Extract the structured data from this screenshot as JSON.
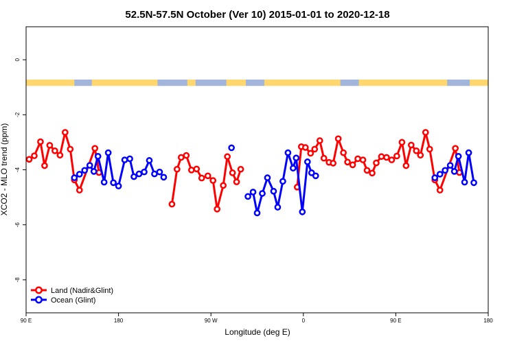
{
  "chart_data": {
    "type": "line",
    "title": "52.5N-57.5N October (Ver 10)   2015-01-01 to 2020-12-18",
    "xlabel": "Longitude (deg E)",
    "ylabel": "XCO2 - MLO trend (ppm)",
    "x_ticks": [
      {
        "value": 90,
        "label": "90 E"
      },
      {
        "value": 180,
        "label": "180"
      },
      {
        "value": 270,
        "label": "90 W"
      },
      {
        "value": 360,
        "label": "0"
      },
      {
        "value": 450,
        "label": "90 E"
      },
      {
        "value": 540,
        "label": "180"
      }
    ],
    "y_ticks": [
      {
        "value": 0,
        "label": "0"
      },
      {
        "value": -2,
        "label": "-2"
      },
      {
        "value": -4,
        "label": "-4"
      },
      {
        "value": -6,
        "label": "-6"
      },
      {
        "value": -8,
        "label": "-8"
      }
    ],
    "xlim": [
      90,
      540
    ],
    "ylim": [
      -9.2,
      1.2
    ],
    "land_mask": {
      "y_range": [
        -0.95,
        -0.72
      ],
      "ocean_spans": [
        [
          137,
          154
        ],
        [
          218,
          247
        ],
        [
          255,
          285
        ],
        [
          304,
          322
        ],
        [
          396,
          414
        ],
        [
          500,
          522
        ]
      ]
    },
    "series": [
      {
        "name": "Land (Nadir&Glint)",
        "color": "#ff0000",
        "segments": [
          [
            [
              93,
              -3.62
            ],
            [
              98,
              -3.49
            ],
            [
              104,
              -2.98
            ],
            [
              108,
              -3.85
            ],
            [
              113,
              -3.11
            ],
            [
              118,
              -3.31
            ],
            [
              123,
              -3.47
            ],
            [
              128,
              -2.64
            ],
            [
              133,
              -3.25
            ],
            [
              137,
              -4.37
            ],
            [
              142,
              -4.74
            ],
            [
              157,
              -3.22
            ],
            [
              161,
              -4.1
            ]
          ],
          [
            [
              232,
              -5.25
            ],
            [
              237,
              -3.98
            ],
            [
              241,
              -3.55
            ],
            [
              246,
              -3.48
            ],
            [
              251,
              -4.01
            ],
            [
              256,
              -3.97
            ],
            [
              261,
              -4.3
            ],
            [
              267,
              -4.22
            ],
            [
              272,
              -4.39
            ],
            [
              276,
              -5.43
            ],
            [
              282,
              -4.57
            ],
            [
              286,
              -3.52
            ],
            [
              291,
              -4.11
            ],
            [
              295,
              -4.44
            ],
            [
              299,
              -3.98
            ]
          ],
          [
            [
              354,
              -4.63
            ],
            [
              358,
              -3.16
            ],
            [
              362,
              -3.19
            ],
            [
              367,
              -3.4
            ],
            [
              371,
              -3.25
            ],
            [
              376,
              -2.94
            ],
            [
              380,
              -3.58
            ],
            [
              385,
              -3.73
            ],
            [
              389,
              -3.76
            ],
            [
              394,
              -2.87
            ],
            [
              399,
              -3.38
            ],
            [
              403,
              -3.72
            ],
            [
              408,
              -3.82
            ],
            [
              413,
              -3.6
            ],
            [
              418,
              -3.64
            ],
            [
              422,
              -4.02
            ],
            [
              427,
              -4.12
            ],
            [
              431,
              -3.75
            ],
            [
              436,
              -3.52
            ],
            [
              441,
              -3.55
            ],
            [
              446,
              -3.64
            ],
            [
              451,
              -3.5
            ],
            [
              456,
              -3.0
            ],
            [
              460,
              -3.85
            ],
            [
              465,
              -3.1
            ],
            [
              470,
              -3.31
            ],
            [
              474,
              -3.47
            ],
            [
              479,
              -2.64
            ],
            [
              483,
              -3.25
            ],
            [
              488,
              -4.37
            ],
            [
              493,
              -4.74
            ],
            [
              508,
              -3.22
            ],
            [
              512,
              -4.1
            ]
          ]
        ]
      },
      {
        "name": "Ocean (Glint)",
        "color": "#0000ff",
        "segments": [
          [
            [
              137,
              -4.29
            ],
            [
              142,
              -4.16
            ],
            [
              147,
              -4.02
            ],
            [
              152,
              -3.84
            ],
            [
              156,
              -4.06
            ],
            [
              160,
              -3.51
            ],
            [
              166,
              -4.45
            ],
            [
              170,
              -3.38
            ],
            [
              175,
              -4.47
            ],
            [
              180,
              -4.59
            ],
            [
              186,
              -3.64
            ],
            [
              191,
              -3.6
            ],
            [
              195,
              -4.25
            ],
            [
              200,
              -4.15
            ],
            [
              205,
              -4.08
            ],
            [
              210,
              -3.66
            ],
            [
              215,
              -4.15
            ],
            [
              220,
              -4.08
            ],
            [
              224,
              -4.27
            ]
          ],
          [
            [
              306,
              -4.97
            ],
            [
              311,
              -4.81
            ],
            [
              315,
              -5.57
            ],
            [
              320,
              -4.86
            ],
            [
              325,
              -4.29
            ],
            [
              331,
              -4.78
            ],
            [
              335,
              -5.36
            ],
            [
              340,
              -4.42
            ],
            [
              345,
              -3.38
            ],
            [
              350,
              -3.94
            ],
            [
              353,
              -3.57
            ],
            [
              359,
              -5.53
            ],
            [
              364,
              -3.71
            ],
            [
              368,
              -4.11
            ],
            [
              372,
              -4.22
            ]
          ],
          [
            [
              488,
              -4.29
            ],
            [
              493,
              -4.16
            ],
            [
              498,
              -4.02
            ],
            [
              503,
              -3.84
            ],
            [
              507,
              -4.06
            ],
            [
              511,
              -3.51
            ],
            [
              517,
              -4.45
            ],
            [
              521,
              -3.38
            ],
            [
              526,
              -4.47
            ]
          ]
        ],
        "points": [
          [
            290,
            -3.2
          ]
        ]
      }
    ],
    "legend": {
      "placement": "bottom-left",
      "entries": [
        "Land (Nadir&Glint)",
        "Ocean (Glint)"
      ]
    }
  }
}
